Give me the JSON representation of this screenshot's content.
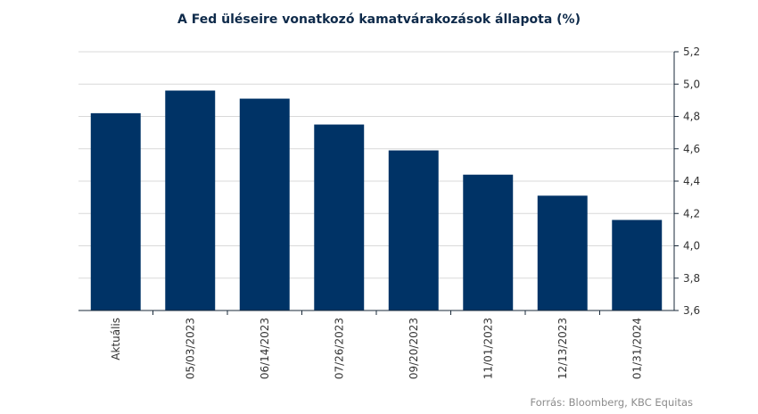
{
  "chart_data": {
    "type": "bar",
    "title": "A Fed üléseire vonatkozó kamatvárakozások állapota (%)",
    "categories": [
      "Aktuális",
      "05/03/2023",
      "06/14/2023",
      "07/26/2023",
      "09/20/2023",
      "11/01/2023",
      "12/13/2023",
      "01/31/2024"
    ],
    "values": [
      4.82,
      4.96,
      4.91,
      4.75,
      4.59,
      4.44,
      4.31,
      4.16
    ],
    "ylim": [
      3.6,
      5.2
    ],
    "yticks": [
      "3,6",
      "3,8",
      "4,0",
      "4,2",
      "4,4",
      "4,6",
      "4,8",
      "5,0",
      "5,2"
    ],
    "y_axis_side": "right",
    "grid": true,
    "bar_color": "#003366",
    "grid_color": "#d9d9d9",
    "source": "Forrás: Bloomberg, KBC Equitas"
  }
}
